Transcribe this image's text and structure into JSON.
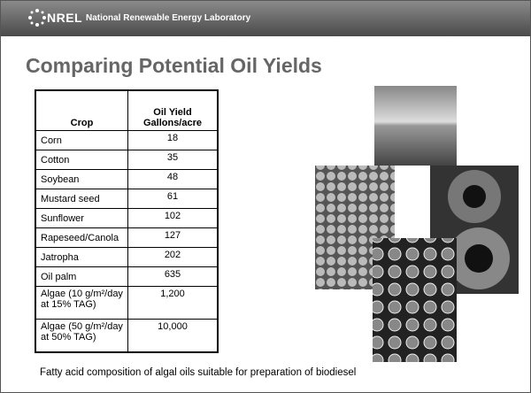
{
  "header": {
    "logo": "NREL",
    "organization": "National Renewable Energy Laboratory"
  },
  "title": "Comparing Potential Oil Yields",
  "table": {
    "columns": [
      "Crop",
      "Oil Yield Gallons/acre"
    ],
    "rows": [
      [
        "Corn",
        "18"
      ],
      [
        "Cotton",
        "35"
      ],
      [
        "Soybean",
        "48"
      ],
      [
        "Mustard seed",
        "61"
      ],
      [
        "Sunflower",
        "102"
      ],
      [
        "Rapeseed/Canola",
        "127"
      ],
      [
        "Jatropha",
        "202"
      ],
      [
        "Oil palm",
        "635"
      ],
      [
        "Algae (10 g/m²/day at 15% TAG)",
        "1,200"
      ],
      [
        "Algae (50 g/m²/day at 50% TAG)",
        "10,000"
      ]
    ]
  },
  "caption": "Fatty acid composition of algal oils suitable for preparation of biodiesel"
}
